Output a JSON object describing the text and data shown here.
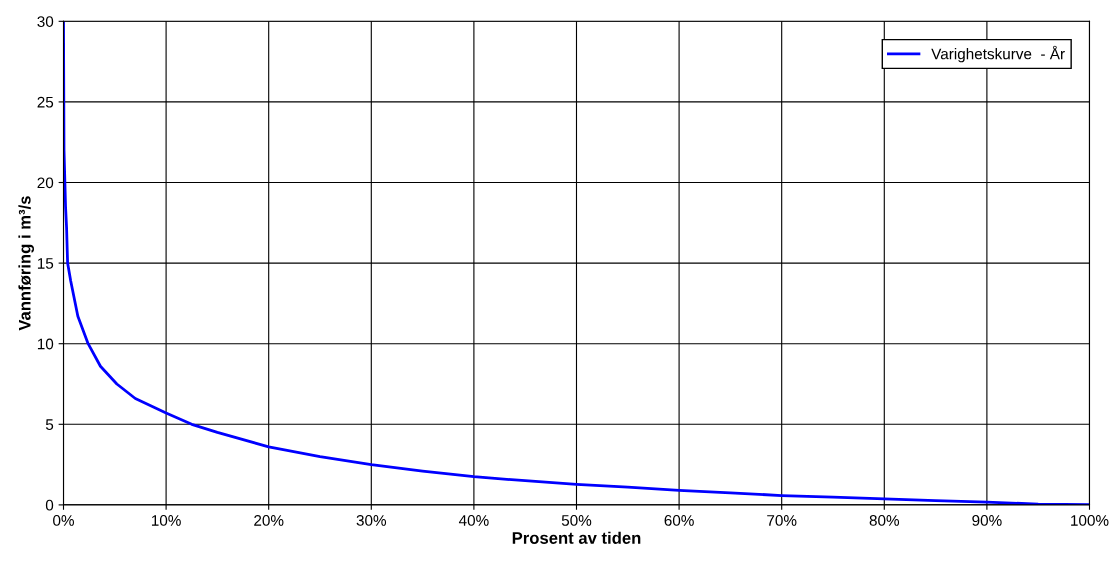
{
  "chart_data": {
    "type": "line",
    "xlabel": "Prosent av tiden",
    "ylabel": "Vannføring i m³/s",
    "series": [
      {
        "name": "Varighetskurve  - År",
        "color": "#0000ff",
        "x": [
          0,
          0.05,
          0.2,
          0.3,
          0.4,
          0.7,
          1.4,
          2.4,
          3.6,
          5.2,
          7,
          10,
          12.5,
          15,
          20,
          25,
          30,
          35,
          40,
          45,
          50,
          55,
          60,
          65,
          70,
          75,
          80,
          85,
          90,
          95,
          100
        ],
        "values": [
          30,
          22,
          18.5,
          17.2,
          15,
          13.9,
          11.7,
          10,
          8.6,
          7.5,
          6.6,
          5.7,
          5.0,
          4.5,
          3.6,
          3.0,
          2.5,
          2.1,
          1.75,
          1.5,
          1.28,
          1.1,
          0.9,
          0.75,
          0.58,
          0.48,
          0.37,
          0.27,
          0.17,
          0.05,
          0.02
        ]
      }
    ],
    "xlim": [
      0,
      100
    ],
    "xticks": [
      {
        "value": 0,
        "label": "0%"
      },
      {
        "value": 10,
        "label": "10%"
      },
      {
        "value": 20,
        "label": "20%"
      },
      {
        "value": 30,
        "label": "30%"
      },
      {
        "value": 40,
        "label": "40%"
      },
      {
        "value": 50,
        "label": "50%"
      },
      {
        "value": 60,
        "label": "60%"
      },
      {
        "value": 70,
        "label": "70%"
      },
      {
        "value": 80,
        "label": "80%"
      },
      {
        "value": 90,
        "label": "90%"
      },
      {
        "value": 100,
        "label": "100%"
      }
    ],
    "ylim": [
      0,
      30
    ],
    "yticks": [
      0,
      5,
      10,
      15,
      20,
      25,
      30
    ],
    "grid": true,
    "legend": "top right",
    "line_style": "solid",
    "marker": "none"
  }
}
